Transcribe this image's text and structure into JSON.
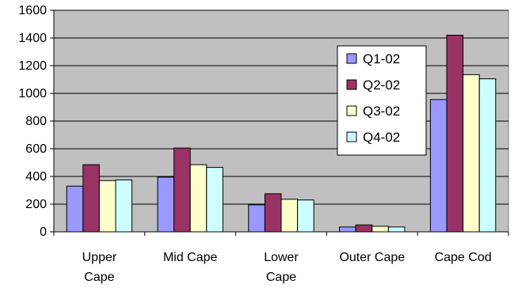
{
  "chart_data": {
    "type": "bar",
    "title": "",
    "xlabel": "",
    "ylabel": "",
    "categories": [
      "Upper Cape",
      "Mid Cape",
      "Lower Cape",
      "Outer Cape",
      "Cape Cod"
    ],
    "series": [
      {
        "name": "Q1-02",
        "color": "#9999ff",
        "values": [
          330,
          395,
          195,
          35,
          955
        ]
      },
      {
        "name": "Q2-02",
        "color": "#993366",
        "values": [
          485,
          605,
          275,
          50,
          1420
        ]
      },
      {
        "name": "Q3-02",
        "color": "#ffffcc",
        "values": [
          370,
          485,
          235,
          40,
          1135
        ]
      },
      {
        "name": "Q4-02",
        "color": "#ccffff",
        "values": [
          375,
          465,
          230,
          35,
          1105
        ]
      }
    ],
    "ylim": [
      0,
      1600
    ],
    "yticks": [
      0,
      200,
      400,
      600,
      800,
      1000,
      1200,
      1400,
      1600
    ],
    "grid": true,
    "legend_position": "right",
    "plot_background": "#c0c0c0"
  }
}
